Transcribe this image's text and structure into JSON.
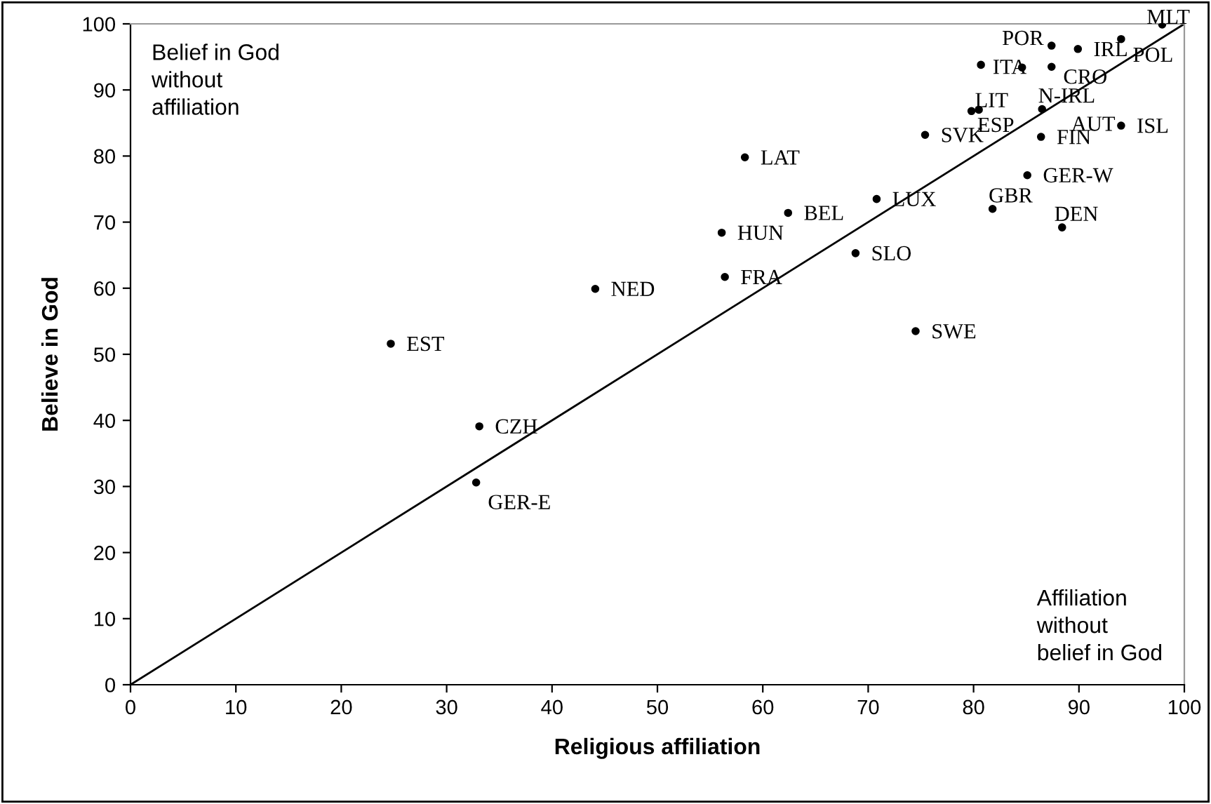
{
  "chart_data": {
    "type": "scatter",
    "xlabel": "Religious affiliation",
    "ylabel": "Believe in God",
    "xlim": [
      0,
      100
    ],
    "ylim": [
      0,
      100
    ],
    "xticks": [
      0,
      10,
      20,
      30,
      40,
      50,
      60,
      70,
      80,
      90,
      100
    ],
    "yticks": [
      0,
      10,
      20,
      30,
      40,
      50,
      60,
      70,
      80,
      90,
      100
    ],
    "grid": false,
    "legend": false,
    "marker": "circle",
    "series": [
      {
        "color": "#000000",
        "x": [
          97.9,
          94.0,
          89.9,
          87.4,
          80.7,
          84.6,
          87.4,
          80.5,
          79.8,
          86.5,
          94.0,
          86.4,
          75.4,
          58.3,
          85.1,
          70.8,
          62.4,
          81.8,
          88.4,
          56.1,
          68.8,
          56.4,
          44.1,
          74.5,
          24.7,
          33.1,
          32.8
        ],
        "values": [
          99.9,
          97.7,
          96.2,
          96.7,
          93.8,
          93.4,
          93.5,
          87.0,
          86.8,
          87.1,
          84.6,
          82.9,
          83.2,
          79.8,
          77.1,
          73.5,
          71.4,
          72.0,
          69.2,
          68.4,
          65.3,
          61.7,
          59.9,
          53.5,
          51.6,
          39.1,
          30.6
        ]
      },
      {
        "type": "line",
        "marker": "none",
        "color": "#000000",
        "x": [
          0,
          100
        ],
        "values": [
          0,
          100
        ]
      }
    ],
    "annotations": [
      "Belief in God\nwithout\naffiliation",
      "Affiliation\nwithout\nbelief in God",
      {
        "text": "MLT",
        "x": 97.9,
        "y": 99.9
      },
      {
        "text": "POL",
        "x": 94.0,
        "y": 97.7
      },
      {
        "text": "IRL",
        "x": 89.9,
        "y": 96.2
      },
      {
        "text": "POR",
        "x": 87.4,
        "y": 96.7
      },
      {
        "text": "ITA",
        "x": 80.7,
        "y": 93.8
      },
      {
        "text": "CRO",
        "x": 87.4,
        "y": 93.5
      },
      {
        "text": "LIT",
        "x": 80.5,
        "y": 87.0
      },
      {
        "text": "ESP",
        "x": 79.8,
        "y": 86.8
      },
      {
        "text": "N-IRL",
        "x": 86.5,
        "y": 87.1
      },
      {
        "text": "AUT",
        "x": 94.0,
        "y": 84.6
      },
      {
        "text": "ISL",
        "x": 94.0,
        "y": 84.6
      },
      {
        "text": "FIN",
        "x": 86.4,
        "y": 82.9
      },
      {
        "text": "SVK",
        "x": 75.4,
        "y": 83.2
      },
      {
        "text": "LAT",
        "x": 58.3,
        "y": 79.8
      },
      {
        "text": "GER-W",
        "x": 85.1,
        "y": 77.1
      },
      {
        "text": "LUX",
        "x": 70.8,
        "y": 73.5
      },
      {
        "text": "BEL",
        "x": 62.4,
        "y": 71.4
      },
      {
        "text": "GBR",
        "x": 81.8,
        "y": 72.0
      },
      {
        "text": "DEN",
        "x": 88.4,
        "y": 69.2
      },
      {
        "text": "HUN",
        "x": 56.1,
        "y": 68.4
      },
      {
        "text": "SLO",
        "x": 68.8,
        "y": 65.3
      },
      {
        "text": "FRA",
        "x": 56.4,
        "y": 61.7
      },
      {
        "text": "NED",
        "x": 44.1,
        "y": 59.9
      },
      {
        "text": "SWE",
        "x": 74.5,
        "y": 53.5
      },
      {
        "text": "EST",
        "x": 24.7,
        "y": 51.6
      },
      {
        "text": "CZH",
        "x": 33.1,
        "y": 39.1
      },
      {
        "text": "GER-E",
        "x": 32.8,
        "y": 30.6
      }
    ]
  }
}
